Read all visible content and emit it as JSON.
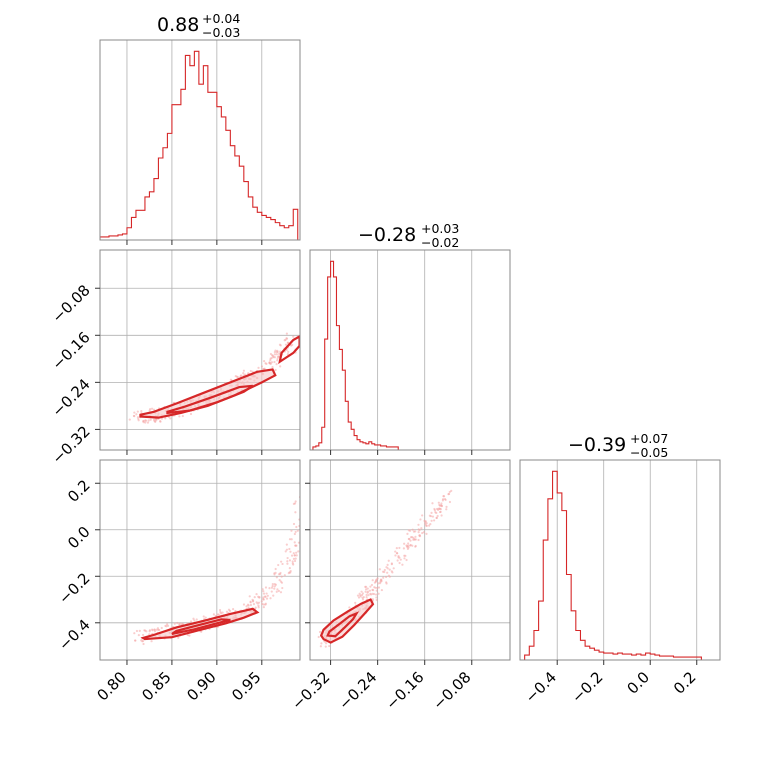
{
  "colors": {
    "series": "#d62728",
    "fill": "#f6c8c8",
    "points": "#f4a6a6"
  },
  "chart_data": {
    "type": "corner",
    "grid": true,
    "parameters": [
      {
        "title_value": "0.88",
        "title_plus": "+0.04",
        "title_minus": "−0.03",
        "range": [
          0.77,
          0.9925
        ],
        "ticks": [
          0.8,
          0.85,
          0.9,
          0.95
        ],
        "tick_labels": [
          "0.80",
          "0.85",
          "0.90",
          "0.95"
        ],
        "hist": [
          [
            0.77,
            1
          ],
          [
            0.775,
            1
          ],
          [
            0.78,
            2
          ],
          [
            0.785,
            2
          ],
          [
            0.79,
            3
          ],
          [
            0.795,
            4
          ],
          [
            0.8,
            10
          ],
          [
            0.805,
            20
          ],
          [
            0.81,
            27
          ],
          [
            0.815,
            27
          ],
          [
            0.82,
            40
          ],
          [
            0.825,
            45
          ],
          [
            0.83,
            58
          ],
          [
            0.835,
            78
          ],
          [
            0.84,
            88
          ],
          [
            0.845,
            102
          ],
          [
            0.85,
            130
          ],
          [
            0.855,
            130
          ],
          [
            0.86,
            145
          ],
          [
            0.865,
            178
          ],
          [
            0.87,
            168
          ],
          [
            0.875,
            182
          ],
          [
            0.88,
            150
          ],
          [
            0.885,
            168
          ],
          [
            0.89,
            142
          ],
          [
            0.895,
            142
          ],
          [
            0.9,
            128
          ],
          [
            0.905,
            118
          ],
          [
            0.91,
            105
          ],
          [
            0.915,
            90
          ],
          [
            0.92,
            80
          ],
          [
            0.925,
            70
          ],
          [
            0.93,
            55
          ],
          [
            0.935,
            40
          ],
          [
            0.94,
            30
          ],
          [
            0.945,
            25
          ],
          [
            0.95,
            22
          ],
          [
            0.955,
            20
          ],
          [
            0.96,
            18
          ],
          [
            0.965,
            15
          ],
          [
            0.97,
            12
          ],
          [
            0.975,
            10
          ],
          [
            0.98,
            12
          ],
          [
            0.985,
            28
          ]
        ]
      },
      {
        "title_value": "−0.28",
        "title_plus": "+0.03",
        "title_minus": "−0.02",
        "range": [
          -0.355,
          -0.015
        ],
        "ticks": [
          -0.32,
          -0.24,
          -0.16,
          -0.08
        ],
        "tick_labels": [
          "−0.32",
          "−0.24",
          "−0.16",
          "−0.08"
        ],
        "hist": [
          [
            -0.35,
            1
          ],
          [
            -0.345,
            2
          ],
          [
            -0.34,
            5
          ],
          [
            -0.335,
            20
          ],
          [
            -0.33,
            105
          ],
          [
            -0.325,
            165
          ],
          [
            -0.32,
            180
          ],
          [
            -0.315,
            165
          ],
          [
            -0.31,
            118
          ],
          [
            -0.305,
            95
          ],
          [
            -0.3,
            75
          ],
          [
            -0.295,
            45
          ],
          [
            -0.29,
            25
          ],
          [
            -0.285,
            18
          ],
          [
            -0.28,
            12
          ],
          [
            -0.275,
            8
          ],
          [
            -0.27,
            6
          ],
          [
            -0.265,
            5
          ],
          [
            -0.26,
            4
          ],
          [
            -0.255,
            6
          ],
          [
            -0.25,
            4
          ],
          [
            -0.245,
            3
          ],
          [
            -0.24,
            3
          ],
          [
            -0.235,
            2
          ],
          [
            -0.23,
            2
          ],
          [
            -0.225,
            1
          ],
          [
            -0.22,
            1
          ],
          [
            -0.215,
            1
          ],
          [
            -0.21,
            1
          ]
        ]
      },
      {
        "title_value": "−0.39",
        "title_plus": "+0.07",
        "title_minus": "−0.05",
        "range": [
          -0.56,
          0.3
        ],
        "ticks": [
          -0.4,
          -0.2,
          0.0,
          0.2
        ],
        "tick_labels": [
          "−0.4",
          "−0.2",
          "0.0",
          "0.2"
        ],
        "hist": [
          [
            -0.54,
            3
          ],
          [
            -0.52,
            12
          ],
          [
            -0.5,
            28
          ],
          [
            -0.48,
            58
          ],
          [
            -0.46,
            120
          ],
          [
            -0.44,
            162
          ],
          [
            -0.42,
            190
          ],
          [
            -0.4,
            168
          ],
          [
            -0.38,
            150
          ],
          [
            -0.36,
            85
          ],
          [
            -0.34,
            48
          ],
          [
            -0.32,
            28
          ],
          [
            -0.3,
            18
          ],
          [
            -0.28,
            12
          ],
          [
            -0.26,
            10
          ],
          [
            -0.24,
            8
          ],
          [
            -0.22,
            6
          ],
          [
            -0.2,
            5
          ],
          [
            -0.18,
            5
          ],
          [
            -0.16,
            4
          ],
          [
            -0.14,
            5
          ],
          [
            -0.12,
            4
          ],
          [
            -0.1,
            4
          ],
          [
            -0.08,
            3
          ],
          [
            -0.06,
            4
          ],
          [
            -0.04,
            3
          ],
          [
            -0.02,
            5
          ],
          [
            0.0,
            4
          ],
          [
            0.02,
            3
          ],
          [
            0.04,
            2
          ],
          [
            0.06,
            2
          ],
          [
            0.08,
            2
          ],
          [
            0.1,
            1
          ],
          [
            0.12,
            1
          ],
          [
            0.14,
            1
          ],
          [
            0.16,
            1
          ],
          [
            0.18,
            1
          ],
          [
            0.2,
            1
          ]
        ]
      }
    ],
    "pair_curves": {
      "1_0": [
        [
          0.81,
          -0.302
        ],
        [
          0.83,
          -0.297
        ],
        [
          0.85,
          -0.289
        ],
        [
          0.87,
          -0.28
        ],
        [
          0.89,
          -0.268
        ],
        [
          0.91,
          -0.255
        ],
        [
          0.93,
          -0.238
        ],
        [
          0.95,
          -0.218
        ],
        [
          0.97,
          -0.193
        ],
        [
          0.99,
          -0.162
        ]
      ],
      "2_0": [
        [
          0.81,
          -0.465
        ],
        [
          0.83,
          -0.452
        ],
        [
          0.85,
          -0.436
        ],
        [
          0.87,
          -0.418
        ],
        [
          0.89,
          -0.398
        ],
        [
          0.91,
          -0.374
        ],
        [
          0.93,
          -0.345
        ],
        [
          0.95,
          -0.303
        ],
        [
          0.965,
          -0.25
        ],
        [
          0.975,
          -0.18
        ],
        [
          0.985,
          -0.06
        ],
        [
          0.993,
          0.12
        ]
      ],
      "2_1": [
        [
          -0.33,
          -0.475
        ],
        [
          -0.32,
          -0.45
        ],
        [
          -0.305,
          -0.42
        ],
        [
          -0.29,
          -0.38
        ],
        [
          -0.275,
          -0.345
        ],
        [
          -0.26,
          -0.3
        ],
        [
          -0.245,
          -0.25
        ],
        [
          -0.225,
          -0.18
        ],
        [
          -0.2,
          -0.1
        ],
        [
          -0.17,
          -0.01
        ],
        [
          -0.14,
          0.08
        ],
        [
          -0.12,
          0.15
        ]
      ]
    },
    "pair_contours": {
      "1_0": [
        [
          [
            0.815,
            -0.298
          ],
          [
            0.835,
            -0.3
          ],
          [
            0.86,
            -0.292
          ],
          [
            0.89,
            -0.28
          ],
          [
            0.92,
            -0.262
          ],
          [
            0.95,
            -0.24
          ],
          [
            0.965,
            -0.228
          ],
          [
            0.962,
            -0.218
          ],
          [
            0.945,
            -0.222
          ],
          [
            0.915,
            -0.24
          ],
          [
            0.885,
            -0.258
          ],
          [
            0.855,
            -0.276
          ],
          [
            0.83,
            -0.29
          ],
          [
            0.815,
            -0.295
          ]
        ],
        [
          [
            0.845,
            -0.292
          ],
          [
            0.87,
            -0.288
          ],
          [
            0.9,
            -0.274
          ],
          [
            0.93,
            -0.256
          ],
          [
            0.94,
            -0.246
          ],
          [
            0.925,
            -0.248
          ],
          [
            0.895,
            -0.265
          ],
          [
            0.865,
            -0.281
          ],
          [
            0.845,
            -0.29
          ]
        ],
        [
          [
            0.97,
            -0.205
          ],
          [
            0.985,
            -0.19
          ],
          [
            0.992,
            -0.178
          ],
          [
            0.992,
            -0.162
          ],
          [
            0.985,
            -0.168
          ],
          [
            0.972,
            -0.19
          ]
        ]
      ],
      "2_0": [
        [
          [
            0.82,
            -0.47
          ],
          [
            0.85,
            -0.462
          ],
          [
            0.88,
            -0.432
          ],
          [
            0.91,
            -0.402
          ],
          [
            0.93,
            -0.378
          ],
          [
            0.945,
            -0.355
          ],
          [
            0.94,
            -0.34
          ],
          [
            0.915,
            -0.362
          ],
          [
            0.885,
            -0.392
          ],
          [
            0.855,
            -0.42
          ],
          [
            0.83,
            -0.452
          ],
          [
            0.818,
            -0.465
          ]
        ],
        [
          [
            0.85,
            -0.448
          ],
          [
            0.875,
            -0.428
          ],
          [
            0.9,
            -0.402
          ],
          [
            0.915,
            -0.388
          ],
          [
            0.905,
            -0.385
          ],
          [
            0.88,
            -0.41
          ],
          [
            0.855,
            -0.435
          ]
        ]
      ],
      "2_1": [
        [
          [
            -0.332,
            -0.47
          ],
          [
            -0.32,
            -0.485
          ],
          [
            -0.3,
            -0.46
          ],
          [
            -0.28,
            -0.41
          ],
          [
            -0.262,
            -0.36
          ],
          [
            -0.248,
            -0.32
          ],
          [
            -0.252,
            -0.3
          ],
          [
            -0.268,
            -0.318
          ],
          [
            -0.29,
            -0.35
          ],
          [
            -0.315,
            -0.39
          ],
          [
            -0.332,
            -0.43
          ],
          [
            -0.336,
            -0.455
          ]
        ],
        [
          [
            -0.325,
            -0.455
          ],
          [
            -0.312,
            -0.458
          ],
          [
            -0.296,
            -0.42
          ],
          [
            -0.282,
            -0.385
          ],
          [
            -0.276,
            -0.36
          ],
          [
            -0.288,
            -0.372
          ],
          [
            -0.305,
            -0.405
          ],
          [
            -0.322,
            -0.438
          ]
        ]
      ]
    }
  }
}
